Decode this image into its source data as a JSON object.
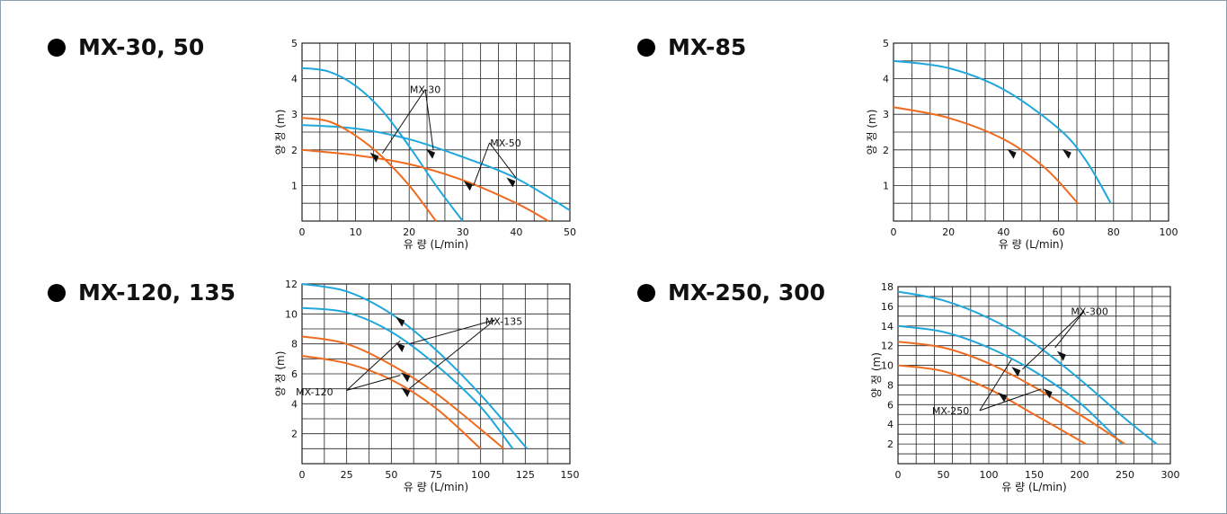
{
  "colors": {
    "blue": "#1fa7dc",
    "orange": "#ee6b1f",
    "grid": "#222222"
  },
  "panels": [
    {
      "title": "MX-30, 50"
    },
    {
      "title": "MX-85"
    },
    {
      "title": "MX-120, 135"
    },
    {
      "title": "MX-250, 300"
    }
  ],
  "chart_data": [
    {
      "type": "line",
      "title": "MX-30, 50",
      "xlabel": "유 량 (L/min)",
      "ylabel": "양 정 (m)",
      "xlim": [
        0,
        50
      ],
      "ylim": [
        0,
        5
      ],
      "xticks": [
        0,
        10,
        20,
        30,
        40,
        50
      ],
      "yticks": [
        1,
        2,
        3,
        4,
        5
      ],
      "grid": true,
      "series": [
        {
          "name": "MX-30",
          "color": "blue",
          "x": [
            0,
            5,
            10,
            15,
            20,
            25,
            30
          ],
          "y": [
            4.3,
            4.2,
            3.8,
            3.1,
            2.1,
            1.0,
            0
          ]
        },
        {
          "name": "MX-50",
          "color": "blue",
          "x": [
            0,
            10,
            20,
            30,
            40,
            50
          ],
          "y": [
            2.7,
            2.6,
            2.3,
            1.8,
            1.2,
            0.3
          ]
        },
        {
          "name": "MX-30",
          "color": "orange",
          "x": [
            0,
            5,
            10,
            15,
            20,
            25
          ],
          "y": [
            2.9,
            2.8,
            2.4,
            1.8,
            1.0,
            0
          ]
        },
        {
          "name": "MX-50",
          "color": "orange",
          "x": [
            0,
            10,
            20,
            30,
            40,
            46
          ],
          "y": [
            2.0,
            1.85,
            1.6,
            1.15,
            0.5,
            0
          ]
        }
      ],
      "annotations": [
        {
          "text": "MX-30",
          "x": 23,
          "y": 3.7
        },
        {
          "text": "MX-50",
          "x": 38,
          "y": 2.2
        }
      ]
    },
    {
      "type": "line",
      "title": "MX-85",
      "xlabel": "유 량 (L/min)",
      "ylabel": "양 정 (m)",
      "xlim": [
        0,
        100
      ],
      "ylim": [
        0,
        5
      ],
      "xticks": [
        0,
        20,
        40,
        60,
        80,
        100
      ],
      "yticks": [
        1,
        2,
        3,
        4,
        5
      ],
      "grid": true,
      "series": [
        {
          "color": "blue",
          "x": [
            0,
            20,
            40,
            60,
            70,
            79
          ],
          "y": [
            4.5,
            4.3,
            3.7,
            2.6,
            1.7,
            0.5
          ]
        },
        {
          "color": "orange",
          "x": [
            0,
            20,
            40,
            55,
            67
          ],
          "y": [
            3.2,
            2.9,
            2.3,
            1.5,
            0.5
          ]
        }
      ],
      "annotations": []
    },
    {
      "type": "line",
      "title": "MX-120, 135",
      "xlabel": "유 량 (L/min)",
      "ylabel": "양 정 (m)",
      "xlim": [
        0,
        150
      ],
      "ylim": [
        0,
        12
      ],
      "xticks": [
        0,
        25,
        50,
        75,
        100,
        125,
        150
      ],
      "yticks": [
        2,
        4,
        6,
        8,
        10,
        12
      ],
      "grid": true,
      "series": [
        {
          "name": "MX-135",
          "color": "blue",
          "x": [
            0,
            25,
            50,
            75,
            100,
            126
          ],
          "y": [
            12,
            11.5,
            10.0,
            7.6,
            4.6,
            1.0
          ]
        },
        {
          "name": "MX-120",
          "color": "blue",
          "x": [
            0,
            25,
            50,
            75,
            100,
            118
          ],
          "y": [
            10.4,
            10.1,
            8.8,
            6.6,
            3.8,
            1.0
          ]
        },
        {
          "name": "MX-135",
          "color": "orange",
          "x": [
            0,
            25,
            50,
            75,
            100,
            113
          ],
          "y": [
            8.5,
            8.0,
            6.6,
            4.7,
            2.3,
            1.0
          ]
        },
        {
          "name": "MX-120",
          "color": "orange",
          "x": [
            0,
            25,
            50,
            75,
            100
          ],
          "y": [
            7.2,
            6.7,
            5.6,
            3.7,
            1.0
          ]
        }
      ],
      "annotations": [
        {
          "text": "MX-135",
          "x": 113,
          "y": 9.5
        },
        {
          "text": "MX-120",
          "x": 7,
          "y": 4.8
        }
      ]
    },
    {
      "type": "line",
      "title": "MX-250, 300",
      "xlabel": "유 량 (L/min)",
      "ylabel": "양 정 (m)",
      "xlim": [
        0,
        300
      ],
      "ylim": [
        0,
        18
      ],
      "xticks": [
        0,
        50,
        100,
        150,
        200,
        250,
        300
      ],
      "yticks": [
        2,
        4,
        6,
        8,
        10,
        12,
        14,
        16,
        18
      ],
      "grid": true,
      "series": [
        {
          "name": "MX-300",
          "color": "blue",
          "x": [
            0,
            50,
            100,
            150,
            200,
            250,
            285
          ],
          "y": [
            17.5,
            16.6,
            14.8,
            12.2,
            8.6,
            4.6,
            2.0
          ]
        },
        {
          "name": "MX-250",
          "color": "blue",
          "x": [
            0,
            50,
            100,
            150,
            200,
            247
          ],
          "y": [
            14.0,
            13.4,
            11.8,
            9.4,
            6.2,
            2.0
          ]
        },
        {
          "name": "MX-300",
          "color": "orange",
          "x": [
            0,
            50,
            100,
            150,
            200,
            250
          ],
          "y": [
            12.4,
            11.8,
            10.2,
            7.8,
            5.0,
            2.0
          ]
        },
        {
          "name": "MX-250",
          "color": "orange",
          "x": [
            0,
            50,
            100,
            150,
            207
          ],
          "y": [
            10.0,
            9.4,
            7.6,
            5.0,
            2.0
          ]
        }
      ],
      "annotations": [
        {
          "text": "MX-300",
          "x": 211,
          "y": 15.5
        },
        {
          "text": "MX-250",
          "x": 58,
          "y": 5.4
        }
      ]
    }
  ]
}
